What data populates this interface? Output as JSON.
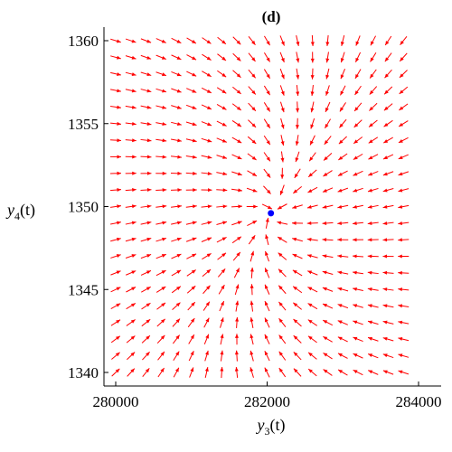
{
  "chart_data": {
    "type": "quiver",
    "title": "(d)",
    "xlabel": {
      "base": "y",
      "sub": "3",
      "arg": "(t)"
    },
    "ylabel": {
      "base": "y",
      "sub": "4",
      "arg": "(t)"
    },
    "xlim": [
      280000,
      284000
    ],
    "ylim": [
      1340,
      1360
    ],
    "xticks": [
      280000,
      282000,
      284000
    ],
    "yticks": [
      1340,
      1345,
      1350,
      1355,
      1360
    ],
    "xtick_labels": [
      "280000",
      "282000",
      "284000"
    ],
    "ytick_labels": [
      "1340",
      "1345",
      "1350",
      "1355",
      "1360"
    ],
    "grid": false,
    "field": {
      "x_start": 280000,
      "x_step": 200,
      "nx": 20,
      "y_start": 1340,
      "y_step": 1,
      "ny": 21,
      "equilibrium": [
        282050,
        1349.6
      ],
      "swirl": 0.3,
      "y_scale": 200
    },
    "equilibrium_point": {
      "x": 282050,
      "y": 1349.6
    },
    "colors": {
      "arrow": "#ff0000",
      "point": "#0000ff",
      "axis": "#000000"
    }
  }
}
